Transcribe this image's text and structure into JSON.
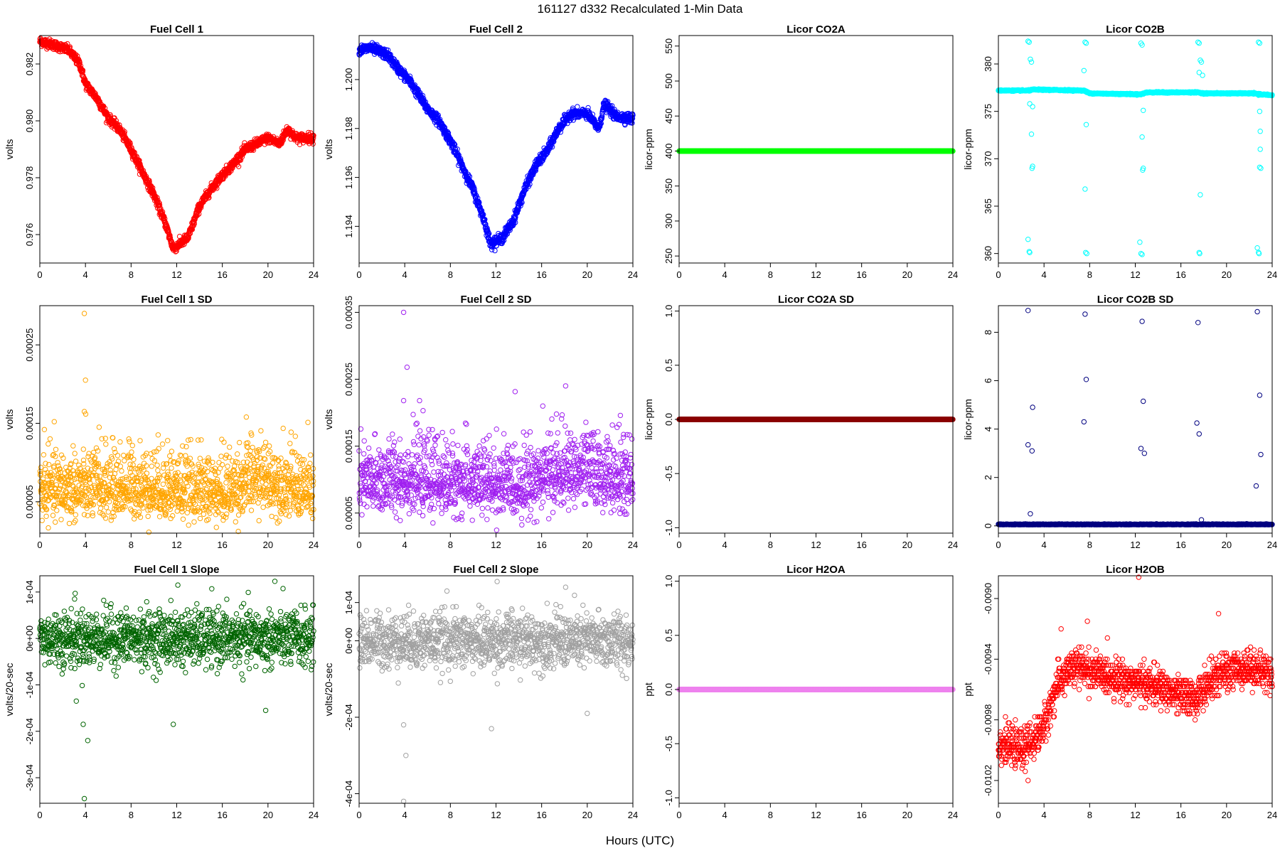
{
  "figure": {
    "title": "161127    d332    Recalculated 1-Min Data",
    "xlabel": "Hours (UTC)"
  },
  "chart_data": [
    {
      "id": "fc1",
      "type": "scatter",
      "title": "Fuel Cell 1",
      "ylabel": "volts",
      "color": "#ff0000",
      "xlim": [
        0,
        24
      ],
      "ylim": [
        0.975,
        0.983
      ],
      "xticks": [
        0,
        4,
        8,
        12,
        16,
        20,
        24
      ],
      "yticks": [
        0.976,
        0.978,
        0.98,
        0.982
      ],
      "ytick_labels": [
        "0.976",
        "0.978",
        "0.980",
        "0.982"
      ],
      "pattern": "curve",
      "n": 1440,
      "noise": 8e-05,
      "curve": [
        [
          0,
          0.9828
        ],
        [
          1,
          0.9827
        ],
        [
          2.5,
          0.9825
        ],
        [
          3.5,
          0.982
        ],
        [
          4,
          0.9813
        ],
        [
          5,
          0.9808
        ],
        [
          6,
          0.9801
        ],
        [
          7,
          0.9797
        ],
        [
          8,
          0.979
        ],
        [
          9,
          0.9782
        ],
        [
          10,
          0.9774
        ],
        [
          11,
          0.9764
        ],
        [
          11.7,
          0.9755
        ],
        [
          13,
          0.9759
        ],
        [
          14,
          0.977
        ],
        [
          15,
          0.9776
        ],
        [
          16,
          0.9781
        ],
        [
          17,
          0.9785
        ],
        [
          18,
          0.979
        ],
        [
          19,
          0.9792
        ],
        [
          20,
          0.9794
        ],
        [
          21,
          0.9792
        ],
        [
          21.7,
          0.9797
        ],
        [
          22.5,
          0.9794
        ],
        [
          24,
          0.9794
        ]
      ],
      "outliers": []
    },
    {
      "id": "fc2",
      "type": "scatter",
      "title": "Fuel Cell 2",
      "ylabel": "volts",
      "color": "#0000ff",
      "xlim": [
        0,
        24
      ],
      "ylim": [
        1.1925,
        1.2018
      ],
      "xticks": [
        0,
        4,
        8,
        12,
        16,
        20,
        24
      ],
      "yticks": [
        1.194,
        1.196,
        1.198,
        1.2
      ],
      "ytick_labels": [
        "1.194",
        "1.196",
        "1.198",
        "1.200"
      ],
      "pattern": "curve",
      "n": 1440,
      "noise": 0.0001,
      "curve": [
        [
          0,
          1.2012
        ],
        [
          1,
          1.2013
        ],
        [
          2.5,
          1.201
        ],
        [
          3.5,
          1.2004
        ],
        [
          4.5,
          1.1999
        ],
        [
          6,
          1.1988
        ],
        [
          7,
          1.1983
        ],
        [
          8,
          1.1975
        ],
        [
          9,
          1.1965
        ],
        [
          10,
          1.1955
        ],
        [
          11,
          1.1942
        ],
        [
          11.5,
          1.1933
        ],
        [
          12.5,
          1.1935
        ],
        [
          13.5,
          1.1942
        ],
        [
          14.5,
          1.1955
        ],
        [
          15.5,
          1.1965
        ],
        [
          16.5,
          1.1971
        ],
        [
          17.5,
          1.198
        ],
        [
          18.5,
          1.1986
        ],
        [
          20,
          1.1986
        ],
        [
          21,
          1.198
        ],
        [
          21.5,
          1.199
        ],
        [
          22.5,
          1.1985
        ],
        [
          24,
          1.1984
        ]
      ],
      "outliers": []
    },
    {
      "id": "co2a",
      "type": "scatter",
      "title": "Licor CO2A",
      "ylabel": "licor-ppm",
      "color": "#00ff00",
      "xlim": [
        0,
        24
      ],
      "ylim": [
        240,
        565
      ],
      "xticks": [
        0,
        4,
        8,
        12,
        16,
        20,
        24
      ],
      "yticks": [
        250,
        300,
        350,
        400,
        450,
        500,
        550
      ],
      "ytick_labels": [
        "250",
        "300",
        "350",
        "400",
        "450",
        "500",
        "550"
      ],
      "pattern": "flat",
      "value": 400,
      "n": 1440,
      "filled": true,
      "outliers": []
    },
    {
      "id": "co2b",
      "type": "scatter",
      "title": "Licor CO2B",
      "ylabel": "licor-ppm",
      "color": "#00ffff",
      "xlim": [
        0,
        24
      ],
      "ylim": [
        359,
        383
      ],
      "xticks": [
        0,
        4,
        8,
        12,
        16,
        20,
        24
      ],
      "yticks": [
        360,
        365,
        370,
        375,
        380
      ],
      "ytick_labels": [
        "360",
        "365",
        "370",
        "375",
        "380"
      ],
      "pattern": "curve",
      "n": 1440,
      "noise": 0.03,
      "curve": [
        [
          0,
          377.2
        ],
        [
          2.7,
          377.2
        ],
        [
          3.0,
          377.3
        ],
        [
          7.5,
          377.2
        ],
        [
          8,
          376.9
        ],
        [
          12.5,
          376.8
        ],
        [
          13,
          377.0
        ],
        [
          17.5,
          377.0
        ],
        [
          18,
          376.9
        ],
        [
          22.3,
          376.9
        ],
        [
          23,
          376.8
        ],
        [
          24,
          376.7
        ]
      ],
      "outliers": [
        [
          2.6,
          382.4
        ],
        [
          2.7,
          382.3
        ],
        [
          2.8,
          380.5
        ],
        [
          2.9,
          380.2
        ],
        [
          2.75,
          375.8
        ],
        [
          3.0,
          375.5
        ],
        [
          2.9,
          372.6
        ],
        [
          3.0,
          369.2
        ],
        [
          2.95,
          369.0
        ],
        [
          2.6,
          361.5
        ],
        [
          2.7,
          360.2
        ],
        [
          2.75,
          360.1
        ],
        [
          7.6,
          382.3
        ],
        [
          7.7,
          382.2
        ],
        [
          7.5,
          379.3
        ],
        [
          7.7,
          373.6
        ],
        [
          7.6,
          366.8
        ],
        [
          7.65,
          360.1
        ],
        [
          7.75,
          360.0
        ],
        [
          12.5,
          382.2
        ],
        [
          12.6,
          382.0
        ],
        [
          12.7,
          375.1
        ],
        [
          12.6,
          372.3
        ],
        [
          12.7,
          369.0
        ],
        [
          12.65,
          368.8
        ],
        [
          12.4,
          361.2
        ],
        [
          12.5,
          360.0
        ],
        [
          12.6,
          359.9
        ],
        [
          17.5,
          382.3
        ],
        [
          17.6,
          382.2
        ],
        [
          17.7,
          380.4
        ],
        [
          17.8,
          380.2
        ],
        [
          17.6,
          379.1
        ],
        [
          17.9,
          378.8
        ],
        [
          17.7,
          366.2
        ],
        [
          17.6,
          360.1
        ],
        [
          17.65,
          360.0
        ],
        [
          22.8,
          382.3
        ],
        [
          22.9,
          382.2
        ],
        [
          22.8,
          376.7
        ],
        [
          22.9,
          375.0
        ],
        [
          22.95,
          372.9
        ],
        [
          22.95,
          371.0
        ],
        [
          22.9,
          369.1
        ],
        [
          23.0,
          369.0
        ],
        [
          22.7,
          360.6
        ],
        [
          22.8,
          360.1
        ],
        [
          22.85,
          360.0
        ]
      ]
    },
    {
      "id": "fc1sd",
      "type": "scatter",
      "title": "Fuel Cell 1 SD",
      "ylabel": "volts",
      "color": "#ffa500",
      "xlim": [
        0,
        24
      ],
      "ylim": [
        1e-05,
        0.0003
      ],
      "xticks": [
        0,
        4,
        8,
        12,
        16,
        20,
        24
      ],
      "yticks": [
        5e-05,
        0.00015,
        0.00025
      ],
      "ytick_labels": [
        "0.00005",
        "0.00015",
        "0.00025"
      ],
      "pattern": "noise",
      "n": 1440,
      "base": 6.5e-05,
      "spread": 1.8e-05,
      "skew": 0.5,
      "drift": [
        [
          0,
          6.2e-05
        ],
        [
          8,
          6.8e-05
        ],
        [
          14,
          6.2e-05
        ],
        [
          16,
          6e-05
        ],
        [
          19,
          7.8e-05
        ],
        [
          22,
          6.8e-05
        ],
        [
          24,
          6e-05
        ]
      ],
      "outliers": [
        [
          3.9,
          0.00029
        ],
        [
          4.0,
          0.000205
        ],
        [
          3.9,
          0.000165
        ],
        [
          5.2,
          0.000145
        ],
        [
          0.4,
          0.000142
        ],
        [
          18.1,
          0.000158
        ],
        [
          11.2,
          0.000128
        ],
        [
          7.8,
          0.00013
        ]
      ]
    },
    {
      "id": "fc2sd",
      "type": "scatter",
      "title": "Fuel Cell 2 SD",
      "ylabel": "volts",
      "color": "#a020f0",
      "xlim": [
        0,
        24
      ],
      "ylim": [
        2e-05,
        0.00036
      ],
      "xticks": [
        0,
        4,
        8,
        12,
        16,
        20,
        24
      ],
      "yticks": [
        5e-05,
        0.00015,
        0.00025,
        0.00035
      ],
      "ytick_labels": [
        "0.00005",
        "0.00015",
        "0.00025",
        "0.00035"
      ],
      "pattern": "noise",
      "n": 1440,
      "base": 9.5e-05,
      "spread": 2.2e-05,
      "skew": 0.5,
      "drift": [
        [
          0,
          9e-05
        ],
        [
          4,
          0.0001
        ],
        [
          10,
          9.2e-05
        ],
        [
          14,
          9e-05
        ],
        [
          17,
          0.000105
        ],
        [
          20,
          0.00011
        ],
        [
          24,
          9.2e-05
        ]
      ],
      "outliers": [
        [
          3.9,
          0.00035
        ],
        [
          4.2,
          0.000268
        ],
        [
          3.9,
          0.000218
        ],
        [
          5.3,
          0.000218
        ],
        [
          18.1,
          0.00024
        ],
        [
          16.1,
          0.00021
        ],
        [
          22.9,
          0.000196
        ],
        [
          17.3,
          0.000198
        ]
      ]
    },
    {
      "id": "co2asd",
      "type": "scatter",
      "title": "Licor CO2A SD",
      "ylabel": "licor-ppm",
      "color": "#8b0000",
      "xlim": [
        0,
        24
      ],
      "ylim": [
        -1.05,
        1.05
      ],
      "xticks": [
        0,
        4,
        8,
        12,
        16,
        20,
        24
      ],
      "yticks": [
        -1.0,
        -0.5,
        0.0,
        0.5,
        1.0
      ],
      "ytick_labels": [
        "-1.0",
        "-0.5",
        "0.0",
        "0.5",
        "1.0"
      ],
      "pattern": "flat",
      "value": 0,
      "n": 1440,
      "filled": true,
      "outliers": []
    },
    {
      "id": "co2bsd",
      "type": "scatter",
      "title": "Licor CO2B SD",
      "ylabel": "licor-ppm",
      "color": "#000080",
      "xlim": [
        0,
        24
      ],
      "ylim": [
        -0.3,
        9.1
      ],
      "xticks": [
        0,
        4,
        8,
        12,
        16,
        20,
        24
      ],
      "yticks": [
        0,
        2,
        4,
        6,
        8
      ],
      "ytick_labels": [
        "0",
        "2",
        "4",
        "6",
        "8"
      ],
      "pattern": "flat",
      "value": 0.05,
      "n": 1440,
      "noise": 0.012,
      "filled": false,
      "outliers": [
        [
          2.6,
          8.9
        ],
        [
          3.0,
          4.9
        ],
        [
          2.6,
          3.35
        ],
        [
          2.95,
          3.1
        ],
        [
          2.8,
          0.5
        ],
        [
          7.6,
          8.75
        ],
        [
          7.7,
          6.05
        ],
        [
          7.5,
          4.3
        ],
        [
          12.6,
          8.45
        ],
        [
          12.7,
          5.15
        ],
        [
          12.5,
          3.2
        ],
        [
          12.8,
          3.0
        ],
        [
          17.5,
          8.4
        ],
        [
          17.4,
          4.25
        ],
        [
          17.6,
          3.8
        ],
        [
          17.8,
          0.25
        ],
        [
          22.7,
          8.85
        ],
        [
          22.9,
          5.4
        ],
        [
          23.0,
          2.95
        ],
        [
          22.6,
          1.65
        ]
      ]
    },
    {
      "id": "fc1slope",
      "type": "scatter",
      "title": "Fuel Cell 1 Slope",
      "ylabel": "volts/20-sec",
      "color": "#006400",
      "xlim": [
        0,
        24
      ],
      "ylim": [
        -0.000355,
        0.000135
      ],
      "xticks": [
        0,
        4,
        8,
        12,
        16,
        20,
        24
      ],
      "yticks": [
        -0.0003,
        -0.0002,
        -0.0001,
        0,
        0.0001
      ],
      "ytick_labels": [
        "-3e-04",
        "-2e-04",
        "-1e-04",
        "0e+00",
        "1e-04"
      ],
      "pattern": "noise",
      "n": 1300,
      "base": 0.0,
      "spread": 3e-05,
      "skew": 0,
      "drift": [],
      "outliers": [
        [
          3.9,
          -0.000345
        ],
        [
          4.2,
          -0.00022
        ],
        [
          3.8,
          -0.000185
        ],
        [
          3.2,
          -0.000135
        ],
        [
          11.7,
          -0.000185
        ],
        [
          19.8,
          -0.000155
        ],
        [
          12.1,
          0.000115
        ],
        [
          20.6,
          0.000123
        ],
        [
          3.1,
          9.7e-05
        ]
      ]
    },
    {
      "id": "fc2slope",
      "type": "scatter",
      "title": "Fuel Cell 2 Slope",
      "ylabel": "volts/20-sec",
      "color": "#a0a0a0",
      "xlim": [
        0,
        24
      ],
      "ylim": [
        -0.000425,
        0.00017
      ],
      "xticks": [
        0,
        4,
        8,
        12,
        16,
        20,
        24
      ],
      "yticks": [
        -0.0004,
        -0.0002,
        0,
        0.0001
      ],
      "ytick_labels": [
        "-4e-04",
        "-2e-04",
        "0e+00",
        "1e-04"
      ],
      "pattern": "noise",
      "n": 1300,
      "base": 0.0,
      "spread": 3.6e-05,
      "skew": 0,
      "drift": [],
      "outliers": [
        [
          3.9,
          -0.00042
        ],
        [
          4.1,
          -0.0003
        ],
        [
          3.9,
          -0.00022
        ],
        [
          11.6,
          -0.00023
        ],
        [
          20.0,
          -0.00019
        ],
        [
          12.1,
          0.000155
        ],
        [
          18.1,
          0.00014
        ],
        [
          7.7,
          0.00013
        ]
      ]
    },
    {
      "id": "h2oa",
      "type": "scatter",
      "title": "Licor H2OA",
      "ylabel": "ppt",
      "color": "#ee82ee",
      "xlim": [
        0,
        24
      ],
      "ylim": [
        -1.05,
        1.05
      ],
      "xticks": [
        0,
        4,
        8,
        12,
        16,
        20,
        24
      ],
      "yticks": [
        -1.0,
        -0.5,
        0.0,
        0.5,
        1.0
      ],
      "ytick_labels": [
        "-1.0",
        "-0.5",
        "0.0",
        "0.5",
        "1.0"
      ],
      "pattern": "flat",
      "value": 0,
      "n": 1440,
      "filled": true,
      "outliers": []
    },
    {
      "id": "h2ob",
      "type": "scatter",
      "title": "Licor H2OB",
      "ylabel": "ppt",
      "color": "#ff0000",
      "xlim": [
        0,
        24
      ],
      "ylim": [
        -0.01035,
        -0.00885
      ],
      "xticks": [
        0,
        4,
        8,
        12,
        16,
        20,
        24
      ],
      "yticks": [
        -0.0102,
        -0.0098,
        -0.0094,
        -0.009
      ],
      "ytick_labels": [
        "-0.0102",
        "-0.0098",
        "-0.0094",
        "-0.0090"
      ],
      "pattern": "quantized",
      "n": 1440,
      "step": 2e-05,
      "spread": 0.00012,
      "curve": [
        [
          0,
          -0.00995
        ],
        [
          2,
          -0.01
        ],
        [
          3.5,
          -0.0099
        ],
        [
          4.2,
          -0.0098
        ],
        [
          5,
          -0.0096
        ],
        [
          6,
          -0.00948
        ],
        [
          7,
          -0.00945
        ],
        [
          9,
          -0.0095
        ],
        [
          12,
          -0.00955
        ],
        [
          14,
          -0.00958
        ],
        [
          16,
          -0.00965
        ],
        [
          17.5,
          -0.00965
        ],
        [
          18.5,
          -0.00955
        ],
        [
          20,
          -0.00948
        ],
        [
          22,
          -0.00945
        ],
        [
          24,
          -0.0095
        ]
      ],
      "outliers": [
        [
          12.3,
          -0.00886
        ],
        [
          19.3,
          -0.0091
        ],
        [
          2.6,
          -0.0102
        ],
        [
          5.5,
          -0.0092
        ],
        [
          7.8,
          -0.00915
        ]
      ]
    }
  ]
}
